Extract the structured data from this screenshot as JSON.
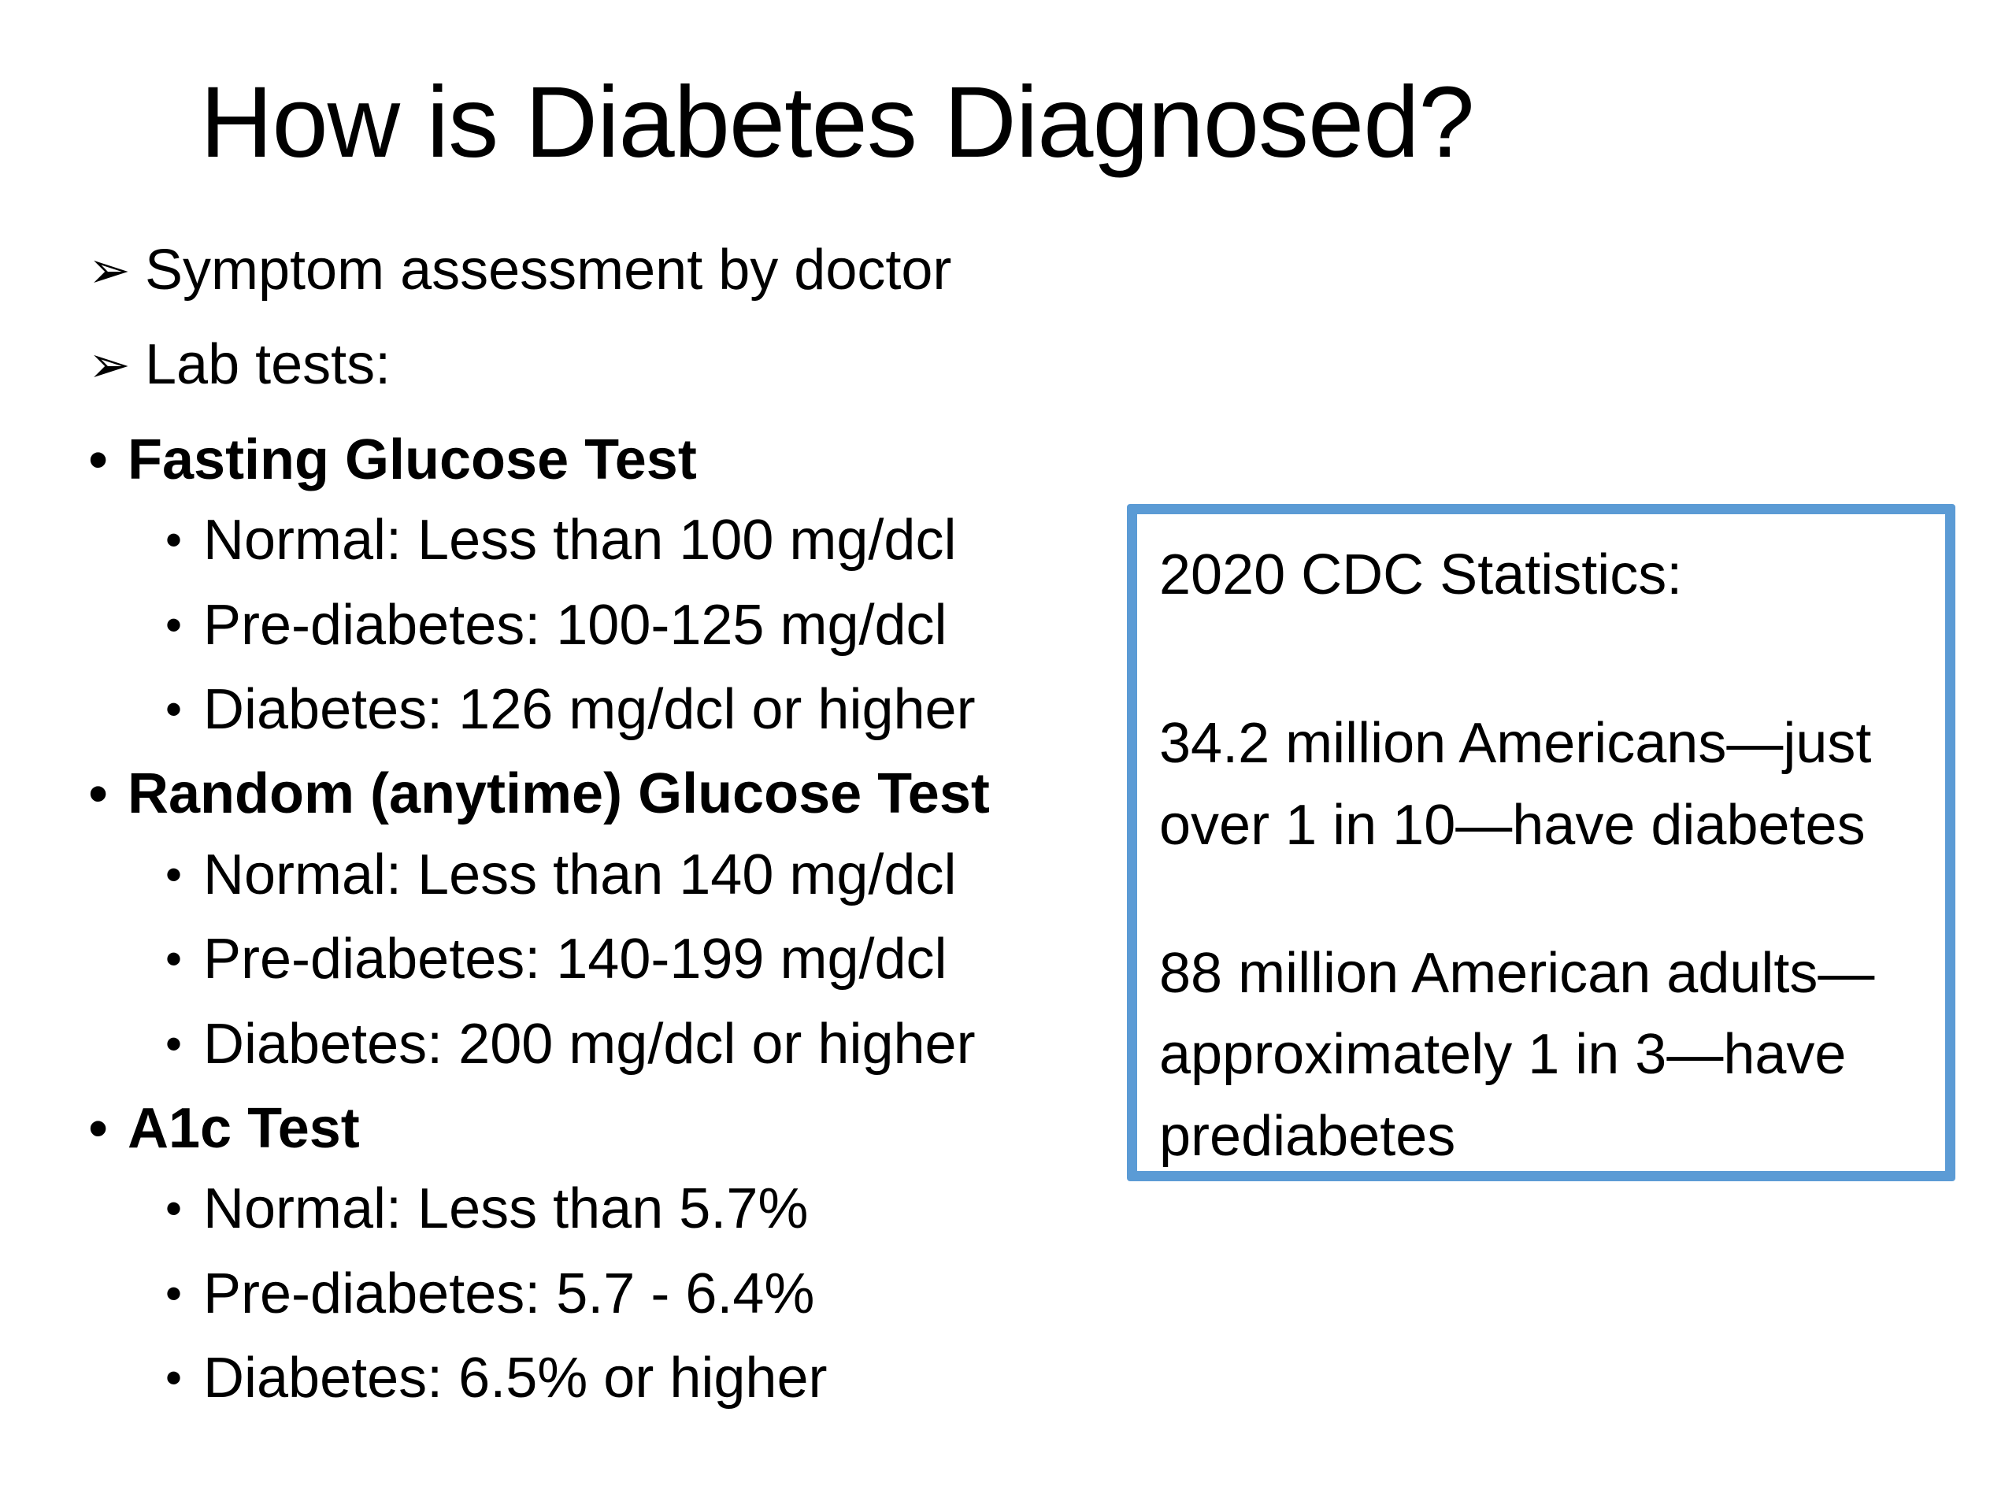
{
  "slide": {
    "title": "How is Diabetes Diagnosed?"
  },
  "top_bullets": [
    {
      "icon": "arrow-bullet-icon",
      "text": "Symptom assessment by doctor"
    },
    {
      "icon": "arrow-bullet-icon",
      "text": "Lab tests:"
    }
  ],
  "tests": [
    {
      "name": "Fasting Glucose Test",
      "items": [
        "Normal: Less than 100 mg/dcl",
        "Pre-diabetes: 100-125 mg/dcl",
        "Diabetes: 126 mg/dcl or higher"
      ]
    },
    {
      "name": "Random (anytime) Glucose Test",
      "items": [
        "Normal: Less than 140 mg/dcl",
        "Pre-diabetes: 140-199 mg/dcl",
        "Diabetes: 200 mg/dcl or higher"
      ]
    },
    {
      "name": "A1c Test",
      "items": [
        "Normal: Less than 5.7%",
        "Pre-diabetes: 5.7 - 6.4%",
        "Diabetes: 6.5% or higher"
      ]
    }
  ],
  "stats_box": {
    "heading": "2020 CDC Statistics:",
    "paragraphs": [
      "34.2 million Americans—just over 1 in 10—have diabetes",
      "88 million American adults—approximately 1 in 3—have prediabetes"
    ],
    "border_color": "#5b9bd5"
  }
}
